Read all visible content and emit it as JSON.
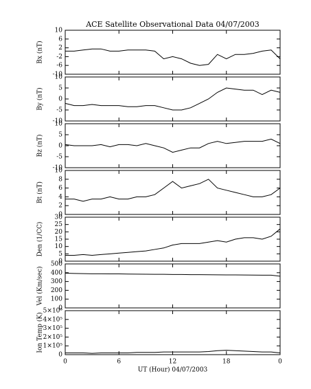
{
  "chart_data": [
    {
      "type": "line",
      "title": "ACE Satellite Observational Data  04/07/2003",
      "ylabel": "Bx (nT)",
      "color": "#000000",
      "x": [
        0,
        1,
        2,
        3,
        4,
        5,
        6,
        7,
        8,
        9,
        10,
        11,
        12,
        13,
        14,
        15,
        16,
        17,
        18,
        19,
        20,
        21,
        22,
        23,
        24
      ],
      "values": [
        0.5,
        0.5,
        1,
        1.5,
        1.5,
        0.5,
        0.5,
        1,
        1,
        1,
        0.5,
        -3,
        -2,
        -3,
        -5,
        -6,
        -5.5,
        -1,
        -3,
        -1,
        -1,
        -0.5,
        0.5,
        1,
        -3
      ],
      "xlim": [
        0,
        24
      ],
      "ylim": [
        -10,
        10
      ],
      "yticks": [
        -10,
        -6,
        -2,
        2,
        6,
        10
      ]
    },
    {
      "type": "line",
      "ylabel": "By (nT)",
      "color": "#000000",
      "x": [
        0,
        1,
        2,
        3,
        4,
        5,
        6,
        7,
        8,
        9,
        10,
        11,
        12,
        13,
        14,
        15,
        16,
        17,
        18,
        19,
        20,
        21,
        22,
        23,
        24
      ],
      "values": [
        -2,
        -3,
        -3,
        -2.5,
        -3,
        -3,
        -3,
        -3.5,
        -3.5,
        -3,
        -3,
        -4,
        -5,
        -5,
        -4,
        -2,
        0,
        3,
        5,
        4.5,
        4,
        4,
        2,
        4,
        3
      ],
      "xlim": [
        0,
        24
      ],
      "ylim": [
        -10,
        10
      ],
      "yticks": [
        -10,
        -5,
        0,
        5,
        10
      ]
    },
    {
      "type": "line",
      "ylabel": "Bz (nT)",
      "color": "#000000",
      "x": [
        0,
        1,
        2,
        3,
        4,
        5,
        6,
        7,
        8,
        9,
        10,
        11,
        12,
        13,
        14,
        15,
        16,
        17,
        18,
        19,
        20,
        21,
        22,
        23,
        24
      ],
      "values": [
        0.5,
        0,
        0,
        0,
        0.5,
        -0.5,
        0.5,
        0.5,
        0,
        1,
        0,
        -1,
        -3,
        -2,
        -1,
        -1,
        1,
        2,
        1,
        1.5,
        2,
        2,
        2,
        3,
        1
      ],
      "xlim": [
        0,
        24
      ],
      "ylim": [
        -10,
        10
      ],
      "yticks": [
        -10,
        -5,
        0,
        5,
        10
      ]
    },
    {
      "type": "line",
      "ylabel": "Bt (nT)",
      "color": "#000000",
      "x": [
        0,
        1,
        2,
        3,
        4,
        5,
        6,
        7,
        8,
        9,
        10,
        11,
        12,
        13,
        14,
        15,
        16,
        17,
        18,
        19,
        20,
        21,
        22,
        23,
        24
      ],
      "values": [
        3.5,
        3.5,
        3,
        3.5,
        3.5,
        4,
        3.5,
        3.5,
        4,
        4,
        4.5,
        6,
        7.5,
        6,
        6.5,
        7,
        8,
        6,
        5.5,
        5,
        4.5,
        4,
        4,
        4.5,
        6
      ],
      "xlim": [
        0,
        24
      ],
      "ylim": [
        0,
        10
      ],
      "yticks": [
        0,
        2,
        4,
        6,
        8,
        10
      ]
    },
    {
      "type": "line",
      "ylabel": "Den (1/CC)",
      "color": "#000000",
      "x": [
        0,
        1,
        2,
        3,
        4,
        5,
        6,
        7,
        8,
        9,
        10,
        11,
        12,
        13,
        14,
        15,
        16,
        17,
        18,
        19,
        20,
        21,
        22,
        23,
        24
      ],
      "values": [
        4,
        4,
        4.5,
        4,
        4.5,
        5,
        5.5,
        6,
        6.5,
        7,
        8,
        9,
        11,
        12,
        12,
        12,
        13,
        14,
        13,
        15,
        16,
        16,
        15,
        17,
        22
      ],
      "xlim": [
        0,
        24
      ],
      "ylim": [
        0,
        30
      ],
      "yticks": [
        0,
        5,
        10,
        15,
        20,
        25,
        30
      ]
    },
    {
      "type": "line",
      "ylabel": "Vel (Km/sec)",
      "color": "#000000",
      "x": [
        0,
        1,
        2,
        3,
        4,
        5,
        6,
        7,
        8,
        9,
        10,
        11,
        12,
        13,
        14,
        15,
        16,
        17,
        18,
        19,
        20,
        21,
        22,
        23,
        24
      ],
      "values": [
        395,
        392,
        390,
        388,
        388,
        387,
        387,
        385,
        384,
        383,
        382,
        382,
        380,
        380,
        378,
        378,
        377,
        376,
        375,
        375,
        374,
        373,
        372,
        372,
        360
      ],
      "xlim": [
        0,
        24
      ],
      "ylim": [
        0,
        500
      ],
      "yticks": [
        0,
        100,
        200,
        300,
        400,
        500
      ]
    },
    {
      "type": "line",
      "ylabel": "Ion Temp (K)",
      "xlabel": "UT (Hour)  04/07/2003",
      "color": "#000000",
      "x": [
        0,
        1,
        2,
        3,
        4,
        5,
        6,
        7,
        8,
        9,
        10,
        11,
        12,
        13,
        14,
        15,
        16,
        17,
        18,
        19,
        20,
        21,
        22,
        23,
        24
      ],
      "values": [
        20000,
        20000,
        20000,
        15000,
        20000,
        20000,
        20000,
        20000,
        25000,
        25000,
        25000,
        30000,
        30000,
        30000,
        30000,
        30000,
        35000,
        45000,
        50000,
        45000,
        40000,
        35000,
        30000,
        30000,
        20000
      ],
      "xlim": [
        0,
        24
      ],
      "ylim": [
        0,
        500000
      ],
      "yticks": [
        0,
        {
          "value": 100000,
          "label": "1×10⁵"
        },
        {
          "value": 200000,
          "label": "2×10⁵"
        },
        {
          "value": 300000,
          "label": "3×10⁵"
        },
        {
          "value": 400000,
          "label": "4×10⁵"
        },
        {
          "value": 500000,
          "label": "5×10⁵"
        }
      ],
      "xticks": [
        0,
        6,
        12,
        18,
        {
          "value": 24,
          "label": "0"
        }
      ]
    }
  ]
}
